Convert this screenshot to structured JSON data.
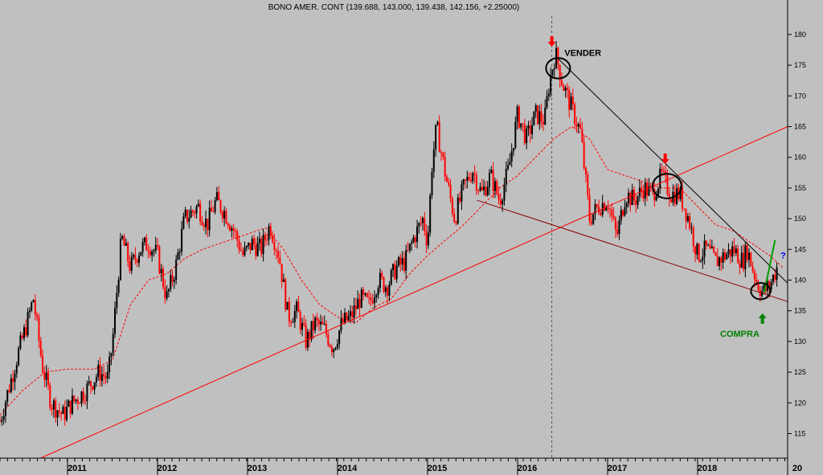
{
  "chart_data": {
    "type": "candlestick",
    "title": "BONO AMER. CONT (139.688, 143.000, 139.438, 142.156, +2.25000)",
    "x_ticks": [
      "2011",
      "2012",
      "2013",
      "2014",
      "2015",
      "2016",
      "2017",
      "2018",
      "20"
    ],
    "y_ticks": [
      115,
      120,
      125,
      130,
      135,
      140,
      145,
      150,
      155,
      160,
      165,
      170,
      175,
      180
    ],
    "ylim": [
      111,
      183
    ],
    "xlim": [
      2010.25,
      2019.0
    ],
    "grid": false,
    "colors": {
      "up": "#000000",
      "down": "#ff0000",
      "ma": "#ff0000",
      "trend_red": "#ff0000",
      "trend_black": "#000000",
      "channel": "#8b0000",
      "breakout": "#00a000",
      "buy": "#008000",
      "question": "#0000ff",
      "background": "#c0c0c0"
    },
    "price_path": [
      [
        2010.25,
        117
      ],
      [
        2010.45,
        128
      ],
      [
        2010.55,
        133
      ],
      [
        2010.62,
        137
      ],
      [
        2010.72,
        126
      ],
      [
        2010.82,
        120
      ],
      [
        2010.95,
        118
      ],
      [
        2011.05,
        120
      ],
      [
        2011.2,
        122
      ],
      [
        2011.35,
        125
      ],
      [
        2011.45,
        124
      ],
      [
        2011.5,
        130
      ],
      [
        2011.6,
        147
      ],
      [
        2011.7,
        142
      ],
      [
        2011.8,
        145
      ],
      [
        2011.9,
        146
      ],
      [
        2012.0,
        144
      ],
      [
        2012.1,
        137
      ],
      [
        2012.2,
        142
      ],
      [
        2012.3,
        150
      ],
      [
        2012.45,
        152
      ],
      [
        2012.55,
        149
      ],
      [
        2012.65,
        153
      ],
      [
        2012.75,
        151
      ],
      [
        2012.85,
        148
      ],
      [
        2012.95,
        144
      ],
      [
        2013.05,
        146
      ],
      [
        2013.15,
        145
      ],
      [
        2013.25,
        149
      ],
      [
        2013.35,
        144
      ],
      [
        2013.45,
        134
      ],
      [
        2013.55,
        135
      ],
      [
        2013.65,
        130
      ],
      [
        2013.75,
        133
      ],
      [
        2013.85,
        132
      ],
      [
        2013.95,
        129
      ],
      [
        2014.05,
        133
      ],
      [
        2014.15,
        134
      ],
      [
        2014.25,
        137
      ],
      [
        2014.35,
        136
      ],
      [
        2014.45,
        140
      ],
      [
        2014.55,
        139
      ],
      [
        2014.65,
        142
      ],
      [
        2014.75,
        143
      ],
      [
        2014.85,
        147
      ],
      [
        2014.95,
        150
      ],
      [
        2015.0,
        146
      ],
      [
        2015.05,
        159
      ],
      [
        2015.1,
        165
      ],
      [
        2015.2,
        157
      ],
      [
        2015.3,
        150
      ],
      [
        2015.4,
        155
      ],
      [
        2015.5,
        158
      ],
      [
        2015.6,
        154
      ],
      [
        2015.7,
        157
      ],
      [
        2015.8,
        153
      ],
      [
        2015.9,
        158
      ],
      [
        2016.0,
        167
      ],
      [
        2016.1,
        163
      ],
      [
        2016.2,
        167
      ],
      [
        2016.3,
        166
      ],
      [
        2016.35,
        172
      ],
      [
        2016.42,
        177
      ],
      [
        2016.5,
        172
      ],
      [
        2016.6,
        168
      ],
      [
        2016.7,
        164
      ],
      [
        2016.8,
        150
      ],
      [
        2016.9,
        152
      ],
      [
        2017.0,
        153
      ],
      [
        2017.1,
        147
      ],
      [
        2017.2,
        154
      ],
      [
        2017.3,
        153
      ],
      [
        2017.4,
        155
      ],
      [
        2017.5,
        154
      ],
      [
        2017.6,
        157
      ],
      [
        2017.7,
        154
      ],
      [
        2017.8,
        154
      ],
      [
        2017.9,
        150
      ],
      [
        2018.0,
        144
      ],
      [
        2018.1,
        145
      ],
      [
        2018.2,
        143
      ],
      [
        2018.3,
        144
      ],
      [
        2018.4,
        145
      ],
      [
        2018.5,
        143
      ],
      [
        2018.55,
        145
      ],
      [
        2018.65,
        140
      ],
      [
        2018.72,
        138
      ],
      [
        2018.8,
        139
      ],
      [
        2018.88,
        142
      ]
    ],
    "moving_average": [
      [
        2010.25,
        118
      ],
      [
        2010.5,
        122
      ],
      [
        2010.75,
        125
      ],
      [
        2011.0,
        125.5
      ],
      [
        2011.3,
        125.5
      ],
      [
        2011.5,
        127
      ],
      [
        2011.7,
        136
      ],
      [
        2011.9,
        140
      ],
      [
        2012.1,
        141
      ],
      [
        2012.3,
        143.5
      ],
      [
        2012.5,
        145
      ],
      [
        2012.8,
        146.5
      ],
      [
        2013.0,
        147.5
      ],
      [
        2013.2,
        148.5
      ],
      [
        2013.4,
        145
      ],
      [
        2013.6,
        140
      ],
      [
        2013.8,
        136
      ],
      [
        2014.0,
        134
      ],
      [
        2014.2,
        133
      ],
      [
        2014.4,
        135.5
      ],
      [
        2014.6,
        137
      ],
      [
        2014.8,
        141
      ],
      [
        2015.0,
        144
      ],
      [
        2015.2,
        146.5
      ],
      [
        2015.4,
        149
      ],
      [
        2015.6,
        152
      ],
      [
        2015.8,
        155
      ],
      [
        2016.0,
        157
      ],
      [
        2016.2,
        160
      ],
      [
        2016.4,
        163
      ],
      [
        2016.6,
        165
      ],
      [
        2016.8,
        163
      ],
      [
        2017.0,
        158
      ],
      [
        2017.2,
        157
      ],
      [
        2017.4,
        156
      ],
      [
        2017.6,
        155
      ],
      [
        2017.8,
        155
      ],
      [
        2018.0,
        152
      ],
      [
        2018.2,
        149
      ],
      [
        2018.4,
        148
      ],
      [
        2018.6,
        146
      ],
      [
        2018.8,
        144
      ],
      [
        2018.95,
        142
      ]
    ],
    "trendlines": [
      {
        "color": "trend_red",
        "points": [
          [
            2010.7,
            111
          ],
          [
            2019.0,
            165
          ]
        ]
      },
      {
        "color": "trend_black",
        "points": [
          [
            2016.42,
            176.5
          ],
          [
            2019.0,
            139.5
          ]
        ]
      },
      {
        "color": "channel",
        "points": [
          [
            2015.55,
            153
          ],
          [
            2019.0,
            136.5
          ]
        ]
      },
      {
        "color": "breakout",
        "points": [
          [
            2018.74,
            138
          ],
          [
            2018.86,
            146.5
          ]
        ]
      }
    ],
    "vline_x": 2016.38,
    "annotations": [
      {
        "text": "VENDER",
        "x": 2016.52,
        "y": 176.5,
        "color": "#000000"
      },
      {
        "text": "COMPRA",
        "x": 2018.25,
        "y": 130.8,
        "color": "#008000"
      },
      {
        "text": "?",
        "x": 2018.92,
        "y": 143.5,
        "color": "#0000ff"
      }
    ],
    "circles": [
      {
        "x": 2016.45,
        "y": 174.5,
        "r": 15
      },
      {
        "x": 2017.66,
        "y": 155.3,
        "r": 18
      },
      {
        "x": 2018.7,
        "y": 138.2,
        "r": 12
      }
    ],
    "arrows": [
      {
        "x": 2016.38,
        "y": 178.8,
        "dir": "down",
        "color": "#ff0000"
      },
      {
        "x": 2017.64,
        "y": 159.7,
        "dir": "down",
        "color": "#ff0000"
      },
      {
        "x": 2018.72,
        "y": 133.8,
        "dir": "up",
        "color": "#008000"
      }
    ]
  }
}
